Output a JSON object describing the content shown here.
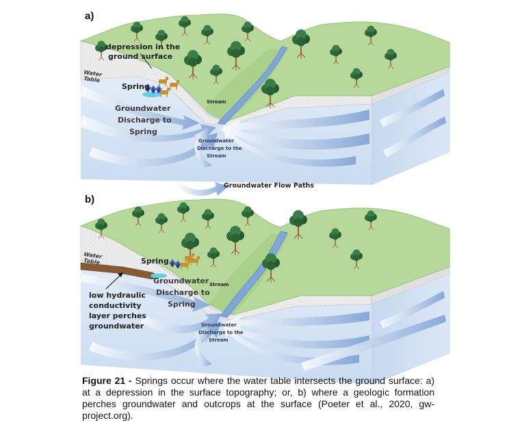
{
  "panel_a": {
    "label": "a)",
    "depression_line1": "depression in the",
    "depression_line2": "ground surface",
    "water_table_line1": "Water",
    "water_table_line2": "Table",
    "spring": "Spring",
    "discharge_spring_line1": "Groundwater",
    "discharge_spring_line2": "Discharge to",
    "discharge_spring_line3": "Spring",
    "stream": "Stream",
    "discharge_stream_line1": "Groundwater",
    "discharge_stream_line2": "Discharge to the",
    "discharge_stream_line3": "Stream"
  },
  "legend": {
    "flow_paths": "Groundwater Flow Paths"
  },
  "panel_b": {
    "label": "b)",
    "water_table_line1": "Water",
    "water_table_line2": "Table",
    "spring": "Spring",
    "discharge_spring_line1": "Groundwater",
    "discharge_spring_line2": "Discharge to",
    "discharge_spring_line3": "Spring",
    "stream": "Stream",
    "discharge_stream_line1": "Groundwater",
    "discharge_stream_line2": "Discharge to the",
    "discharge_stream_line3": "Stream",
    "layer_line1": "low hydraulic",
    "layer_line2": "conductivity",
    "layer_line3": "layer perches",
    "layer_line4": "groundwater"
  },
  "caption": {
    "figure_number": "Figure 21 -",
    "text": " Springs occur where the water table intersects the ground surface: a) at a depression in the surface topography; or, b) where a geologic formation perches groundwater and outcrops at the surface (Poeter et al., 2020, gw-project.org)."
  },
  "colors": {
    "grass": "#b6d99a",
    "soil": "#e6e6e6",
    "groundwater": "#d8e6f5",
    "groundwater_side": "#c4d8ef",
    "stream": "#7fa7d8",
    "flow_arrow": "#8fb2dc",
    "tree": "#2f6b3c"
  }
}
